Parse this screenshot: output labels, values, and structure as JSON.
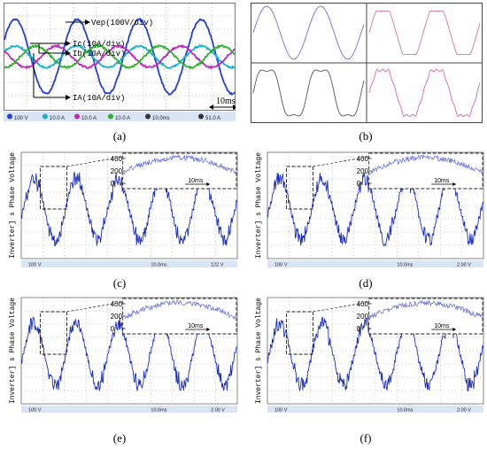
{
  "colors": {
    "scope_bg": "#ffffff",
    "grid": "#9a9a9a",
    "ch_vep": "#1f3fd8",
    "ch_ic": "#19b0c8",
    "ch_ib": "#c028c0",
    "ch_ia": "#2ab32a",
    "inv_trace": "#1a2fbf",
    "status_bar": "#d9e4f5",
    "panel_b_blue": "#6f6fe0",
    "panel_b_pink": "#e06f8f",
    "panel_b_gray": "#555555",
    "panel_b_magenta": "#e060b0"
  },
  "captions": [
    "(a)",
    "(b)",
    "(c)",
    "(d)",
    "(e)",
    "(f)"
  ],
  "panel_a": {
    "labels": {
      "vep": "Vep(100V/div)",
      "ic": "Ic(10A/div)",
      "ib": "Ib(10A/div)",
      "ia": "IA(10A/div)",
      "time": "10ms"
    },
    "status": [
      "100 V",
      "10.0 A",
      "10.0 A",
      "10.0 A",
      "10.0ms",
      "51.0 A"
    ]
  },
  "inverter_panels": [
    {
      "id": "c",
      "ylabel": "Inverter] s Phase Voltage [V]",
      "inset_ticks": [
        "400",
        "200",
        "0"
      ],
      "time_label": "10ms",
      "status": [
        "100 V",
        "10.0ms",
        "122 V"
      ]
    },
    {
      "id": "d",
      "ylabel": "Inverter] s Phase Voltage [V]",
      "inset_ticks": [
        "400",
        "200",
        "0"
      ],
      "time_label": "10ms",
      "status": [
        "100 V",
        "10.0ms",
        "2.00 V"
      ]
    },
    {
      "id": "e",
      "ylabel": "Inverter] s Phase Voltage [V]",
      "inset_ticks": [
        "400",
        "200",
        "0"
      ],
      "time_label": "10ms",
      "status": [
        "100 V",
        "10.0ms",
        "2.00 V"
      ]
    },
    {
      "id": "f",
      "ylabel": "Inverter] s Phase Voltage [V]",
      "inset_ticks": [
        "400",
        "200",
        "0"
      ],
      "time_label": "10ms",
      "status": [
        "100 V",
        "10.0ms",
        "2.00 V"
      ]
    }
  ]
}
